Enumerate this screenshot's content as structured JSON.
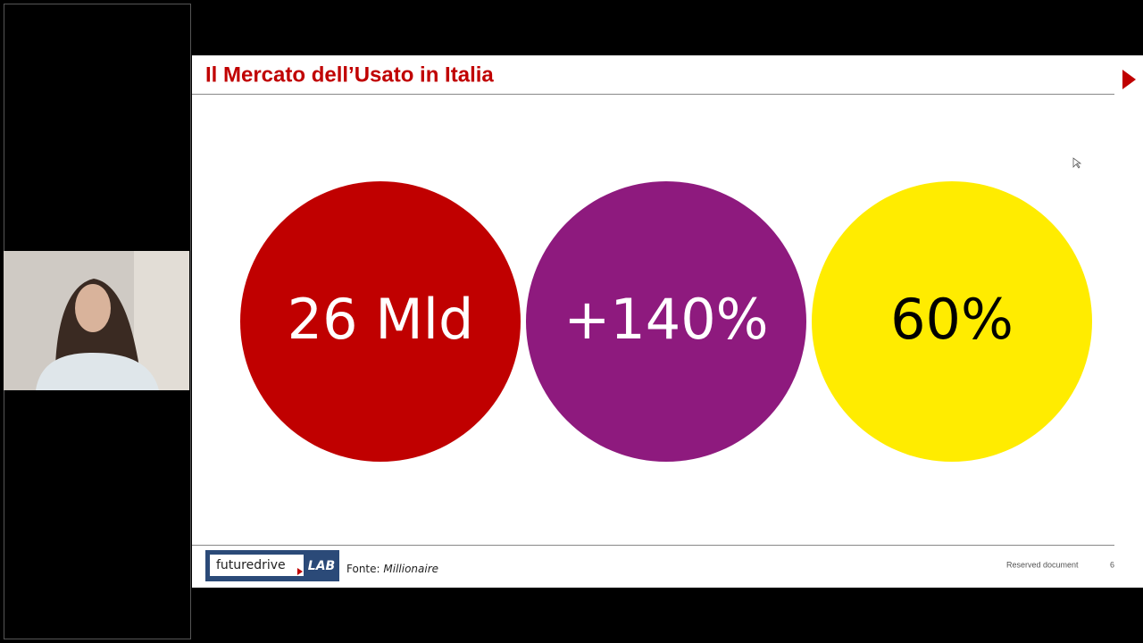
{
  "header": {
    "title": "Il Mercato dell’Usato in Italia"
  },
  "circles": [
    {
      "label": "26 Mld"
    },
    {
      "label": "+140%"
    },
    {
      "label": "60%"
    }
  ],
  "footer": {
    "logo": {
      "name": "futuredrive",
      "lab": "LAB"
    },
    "source_label": "Fonte:",
    "source": "Millionaire",
    "notice": "Reserved document",
    "page": "6"
  }
}
